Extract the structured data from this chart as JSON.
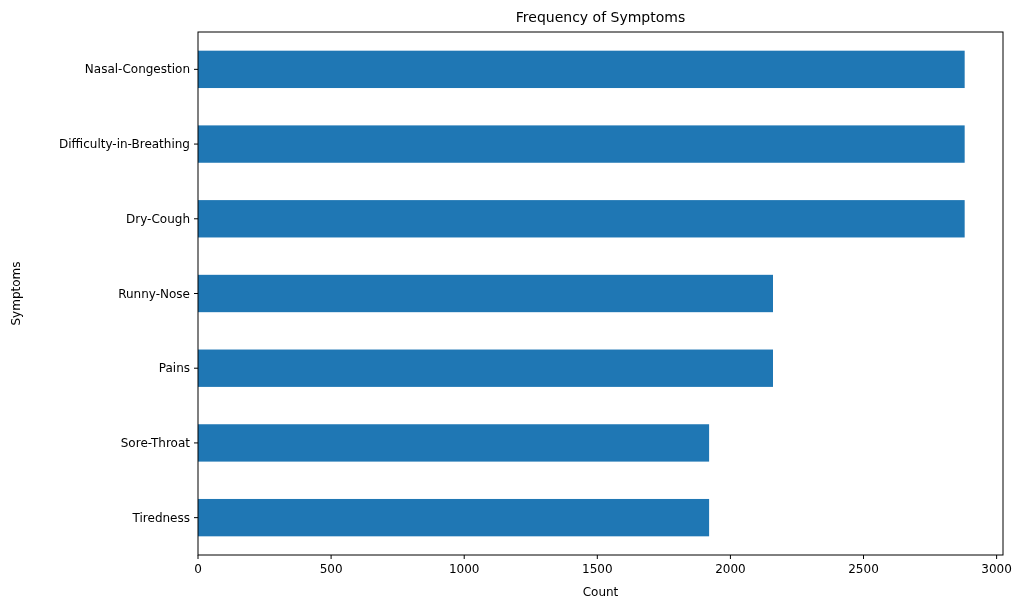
{
  "chart_data": {
    "type": "bar",
    "orientation": "horizontal",
    "title": "Frequency of Symptoms",
    "xlabel": "Count",
    "ylabel": "Symptoms",
    "categories": [
      "Nasal-Congestion",
      "Difficulty-in-Breathing",
      "Dry-Cough",
      "Runny-Nose",
      "Pains",
      "Sore-Throat",
      "Tiredness"
    ],
    "values": [
      2880,
      2880,
      2880,
      2160,
      2160,
      1920,
      1920
    ],
    "color": "#1f77b4",
    "xlim": [
      0,
      3024
    ],
    "xticks": [
      0,
      500,
      1000,
      1500,
      2000,
      2500,
      3000
    ]
  }
}
